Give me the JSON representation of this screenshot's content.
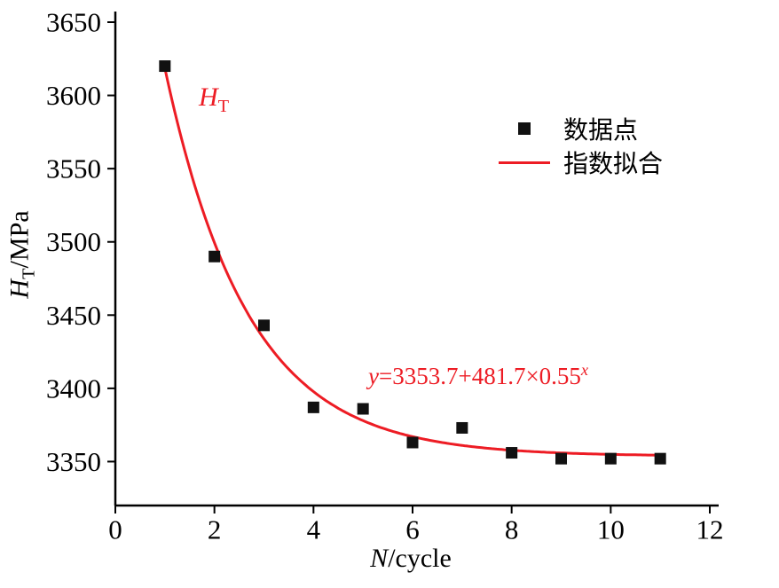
{
  "chart_data": {
    "type": "scatter",
    "series": [
      {
        "name": "数据点",
        "type": "scatter",
        "marker": "square",
        "color": "#111111",
        "x": [
          1,
          2,
          3,
          4,
          5,
          6,
          7,
          8,
          9,
          10,
          11
        ],
        "y": [
          3620,
          3490,
          3443,
          3387,
          3386,
          3363,
          3373,
          3356,
          3352,
          3352,
          3352
        ]
      },
      {
        "name": "指数拟合",
        "type": "line",
        "color": "#ed1c24",
        "equation": "y=3353.7+481.7×0.55^x",
        "params": {
          "a": 3353.7,
          "b": 481.7,
          "c": 0.55
        },
        "x_range": [
          1.0,
          11.05
        ]
      }
    ],
    "xlabel": "N/cycle",
    "ylabel": "HT/MPa",
    "xlim": [
      0,
      12
    ],
    "ylim": [
      3320,
      3650
    ],
    "x_ticks": [
      0,
      2,
      4,
      6,
      8,
      10,
      12
    ],
    "y_ticks": [
      3350,
      3400,
      3450,
      3500,
      3550,
      3600,
      3650
    ],
    "grid": false,
    "legend_position": "upper right",
    "legend": [
      {
        "label": "数据点",
        "marker": "square",
        "color": "#111111"
      },
      {
        "label": "指数拟合",
        "marker": "line",
        "color": "#ed1c24"
      }
    ],
    "colors": {
      "axis": "#000000",
      "fit_line": "#ed1c24",
      "marker": "#111111"
    },
    "labels": {
      "ht": {
        "main": "H",
        "sub": "T"
      },
      "equation": {
        "lead": "y",
        "body": "=3353.7+481.7×0.55",
        "sup": "x"
      },
      "ylabel": {
        "main": "H",
        "sub": "T",
        "rest": "/MPa"
      },
      "xlabel": {
        "italic": "N",
        "rest": "/cycle"
      }
    },
    "annotations": [
      {
        "text": "HT",
        "color": "#ed1c24"
      },
      {
        "text": "y=3353.7+481.7×0.55^x",
        "color": "#ed1c24"
      }
    ]
  }
}
